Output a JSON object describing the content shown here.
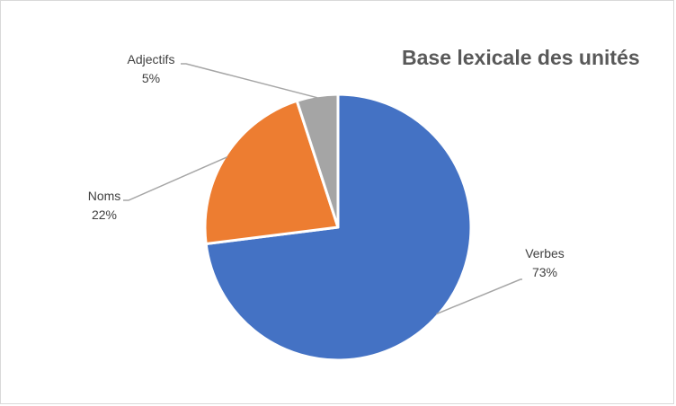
{
  "chart_data": {
    "type": "pie",
    "title": "Base lexicale des unités",
    "slices": [
      {
        "label": "Verbes",
        "value": 73,
        "display": "73%",
        "color": "#4472c4"
      },
      {
        "label": "Noms",
        "value": 22,
        "display": "22%",
        "color": "#ed7d31"
      },
      {
        "label": "Adjectifs",
        "value": 5,
        "display": "5%",
        "color": "#a5a5a5"
      }
    ],
    "start_angle_deg": 0,
    "direction": "clockwise",
    "data_labels": "outside-with-leader-lines",
    "legend": "none",
    "colors": {
      "leader_line": "#a6a6a6",
      "label_text": "#404040",
      "title_text": "#595959",
      "border": "#d9d9d9"
    }
  }
}
